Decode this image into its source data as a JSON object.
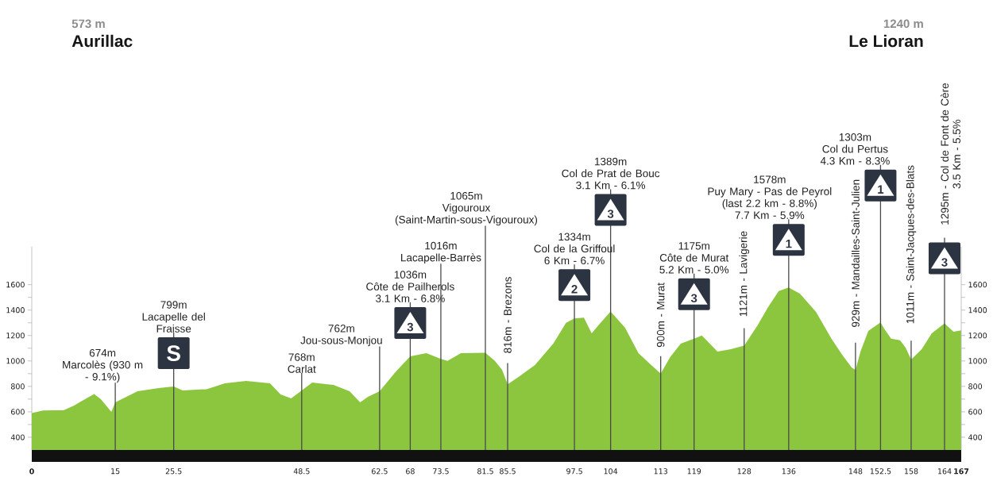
{
  "chart_data": {
    "type": "area",
    "color": "#8cc63f",
    "x": [
      0,
      2,
      4,
      5.7,
      7.6,
      10,
      11.2,
      12.4,
      14.3,
      15,
      19,
      22.8,
      25.5,
      27.1,
      31.4,
      34.7,
      38.5,
      42.8,
      44.7,
      46.6,
      48.5,
      50.4,
      52.8,
      54.2,
      57.1,
      59,
      60.4,
      62.5,
      65.2,
      68,
      70.9,
      73.5,
      74.7,
      77.1,
      81.5,
      83.2,
      84.5,
      85.5,
      87.5,
      90.4,
      93.7,
      96,
      97.5,
      99.2,
      100.6,
      101.8,
      104,
      106.6,
      109,
      111.3,
      113,
      114.7,
      116.6,
      119,
      120.4,
      123.2,
      125.6,
      128,
      130.4,
      132.3,
      134.2,
      136,
      138,
      140.9,
      143.7,
      145.6,
      147.3,
      148,
      148.9,
      150.3,
      152.5,
      153.2,
      154.4,
      156,
      157,
      158,
      159.9,
      161.7,
      164,
      165.6,
      167
    ],
    "values": [
      590,
      610,
      612,
      612,
      650,
      710,
      740,
      700,
      600,
      674,
      762,
      787,
      799,
      768,
      778,
      824,
      843,
      824,
      737,
      706,
      768,
      830,
      818,
      812,
      762,
      675,
      718,
      762,
      906,
      1036,
      1062,
      1016,
      1000,
      1062,
      1065,
      1000,
      930,
      816,
      875,
      968,
      1136,
      1300,
      1334,
      1340,
      1218,
      1280,
      1389,
      1261,
      1062,
      968,
      900,
      1030,
      1136,
      1175,
      1200,
      1074,
      1093,
      1121,
      1280,
      1424,
      1549,
      1578,
      1530,
      1386,
      1174,
      1049,
      949,
      929,
      1074,
      1236,
      1303,
      1250,
      1175,
      1162,
      1105,
      1011,
      1093,
      1218,
      1295,
      1230,
      1240
    ],
    "xlim": [
      0,
      167
    ],
    "xticks": [
      0,
      15,
      25.5,
      48.5,
      62.5,
      68,
      73.5,
      81.5,
      85.5,
      97.5,
      104,
      113,
      119,
      128,
      136,
      148,
      152.5,
      158,
      164,
      167
    ],
    "ylim": [
      300,
      1900
    ],
    "yticks": [
      400,
      {
        "value": 500,
        "label": null
      },
      600,
      {
        "value": 700,
        "label": null
      },
      800,
      {
        "value": 900,
        "label": null
      },
      1000,
      {
        "value": 1100,
        "label": null
      },
      1200,
      {
        "value": 1300,
        "label": null
      },
      1400,
      {
        "value": 1500,
        "label": null
      },
      1600
    ],
    "y2lim": [
      300,
      1900
    ],
    "y2ticks": [
      400,
      {
        "value": 500,
        "label": null
      },
      600,
      {
        "value": 700,
        "label": null
      },
      800,
      {
        "value": 900,
        "label": null
      },
      1000,
      {
        "value": 1100,
        "label": null
      },
      1200,
      {
        "value": 1300,
        "label": null
      },
      1400,
      {
        "value": 1500,
        "label": null
      },
      1600
    ],
    "annotations": [
      "573 m",
      "Aurillac",
      "1240 m",
      "Le Lioran",
      {
        "text": "S",
        "x": 25.5
      },
      {
        "text": "3",
        "x": 68
      },
      {
        "text": "2",
        "x": 97.5
      },
      {
        "text": "3",
        "x": 104
      },
      {
        "text": "3",
        "x": 119
      },
      {
        "text": "1",
        "x": 136
      },
      {
        "text": "1",
        "x": 152.5
      },
      {
        "text": "3",
        "x": 164
      }
    ],
    "ref_lines": [
      {
        "axis": "x",
        "value": 15,
        "label": "674m\nMarcolès (930 m\n- 9.1%)"
      },
      {
        "axis": "x",
        "value": 25.5,
        "label": "799m\nLacapelle del\nFraisse"
      },
      {
        "axis": "x",
        "value": 48.5,
        "label": "768m\nCarlat"
      },
      {
        "axis": "x",
        "value": 62.5,
        "label": "762m\nJou-sous-Monjou"
      },
      {
        "axis": "x",
        "value": 68,
        "label": "1036m\nCôte de Pailherols\n3.1 Km - 6.8%"
      },
      {
        "axis": "x",
        "value": 73.5,
        "label": "1016m\nLacapelle-Barrès"
      },
      {
        "axis": "x",
        "value": 81.5,
        "label": "1065m\nVigouroux\n(Saint-Martin-sous-Vigouroux)"
      },
      {
        "axis": "x",
        "value": 85.5,
        "label": "816m - Brezons"
      },
      {
        "axis": "x",
        "value": 97.5,
        "label": "1334m\nCol de la Griffoul\n6 Km - 6.7%"
      },
      {
        "axis": "x",
        "value": 104,
        "label": "1389m\nCol de Prat de Bouc\n3.1 Km - 6.1%"
      },
      {
        "axis": "x",
        "value": 113,
        "label": "900m - Murat"
      },
      {
        "axis": "x",
        "value": 119,
        "label": "1175m\nCôte de Murat\n5.2 Km - 5.0%"
      },
      {
        "axis": "x",
        "value": 128,
        "label": "1121m - Lavigerie"
      },
      {
        "axis": "x",
        "value": 136,
        "label": "1578m\nPuy Mary - Pas de Peyrol\n(last 2.2 km - 8.8%)\n7.7 Km - 5.9%"
      },
      {
        "axis": "x",
        "value": 148,
        "label": "929m - Mandailles-Saint-Julien"
      },
      {
        "axis": "x",
        "value": 152.5,
        "label": "1303m\nCol du Pertus\n4.3 Km - 8.3%"
      },
      {
        "axis": "x",
        "value": 158,
        "label": "1011m - Saint-Jacques-des-Blats"
      },
      {
        "axis": "x",
        "value": 164,
        "label": "1295m - Col de Font de Cère\n3.5 Km - 5.5%"
      }
    ]
  }
}
